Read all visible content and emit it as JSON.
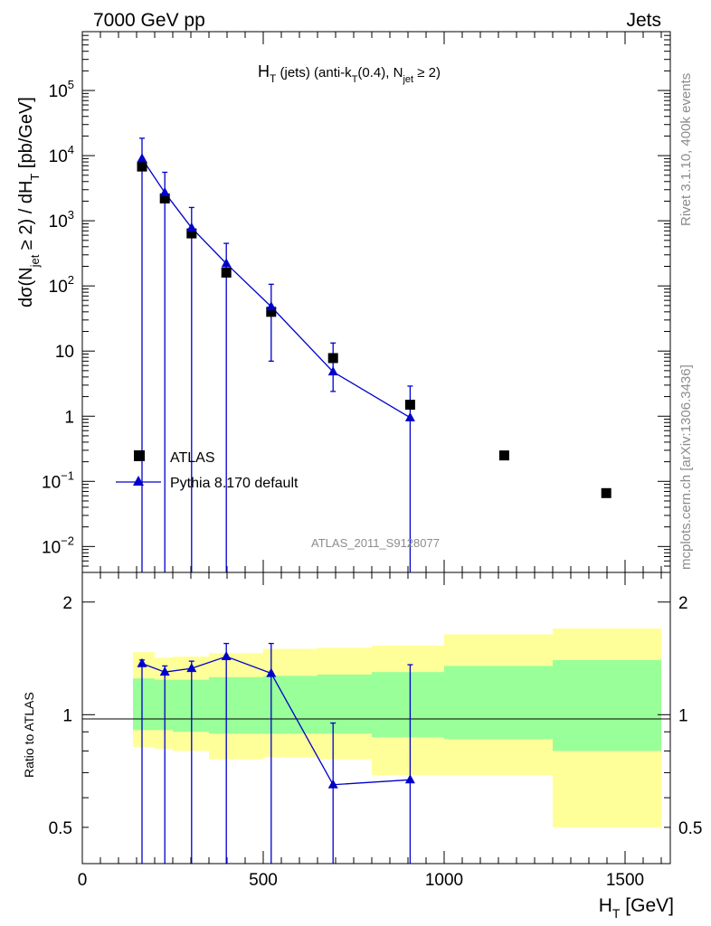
{
  "header": {
    "left": "7000 GeV pp",
    "right": "Jets"
  },
  "side_text": {
    "rivet": "Rivet 3.1.10,  400k events",
    "mcplots": "mcplots.cern.ch [arXiv:1306.3436]"
  },
  "watermark": "ATLAS_2011_S9128077",
  "chart_data": [
    {
      "type": "scatter",
      "title": {
        "main": "H",
        "sub1": "T",
        "mid": " (jets) (anti-k",
        "sub2": "T",
        "mid2": "(0.4), N",
        "sub3": "jet",
        "end": " ≥ 2)"
      },
      "ylabel": {
        "a": "dσ(N",
        "sub1": "jet",
        "b": " ≥ 2) / dH",
        "sub2": "T",
        "c": " [pb/GeV]"
      },
      "yscale": "log",
      "xlim": [
        0,
        1625
      ],
      "ylim": [
        0.004,
        800000
      ],
      "yticks": [
        {
          "value": 0.01,
          "label": "10",
          "exp": "−2"
        },
        {
          "value": 0.1,
          "label": "10",
          "exp": "−1"
        },
        {
          "value": 1,
          "label": "1",
          "exp": ""
        },
        {
          "value": 10,
          "label": "10",
          "exp": ""
        },
        {
          "value": 100,
          "label": "10",
          "exp": "2"
        },
        {
          "value": 1000,
          "label": "10",
          "exp": "3"
        },
        {
          "value": 10000,
          "label": "10",
          "exp": "4"
        },
        {
          "value": 100000,
          "label": "10",
          "exp": "5"
        }
      ],
      "legend": {
        "position": "bottom-left",
        "atlas": "ATLAS",
        "pythia": "Pythia 8.170 default"
      },
      "series": [
        {
          "name": "ATLAS",
          "marker": "square",
          "color": "#000000",
          "x": [
            165,
            228,
            302,
            398,
            522,
            693,
            906,
            1166,
            1448
          ],
          "y": [
            6800,
            2200,
            640,
            160,
            40,
            7.8,
            1.5,
            0.25,
            0.066
          ]
        },
        {
          "name": "Pythia 8.170 default",
          "marker": "triangle",
          "color": "#0000cc",
          "x": [
            165,
            228,
            302,
            398,
            522,
            693,
            906
          ],
          "y": [
            9000,
            2700,
            780,
            220,
            48,
            4.8,
            0.95
          ],
          "yerr_low": [
            9000,
            2700,
            780,
            220,
            41,
            2.4,
            0.95
          ],
          "yerr_high": [
            9500,
            2850,
            820,
            230,
            58,
            8.5,
            1.95
          ]
        }
      ]
    },
    {
      "type": "line",
      "ylabel": "Ratio to ATLAS",
      "xlabel": {
        "main": "H",
        "sub": "T",
        "rest": " [GeV]"
      },
      "xlim": [
        0,
        1625
      ],
      "ylim": [
        0.4,
        2.4
      ],
      "xticks": [
        0,
        500,
        1000,
        1500
      ],
      "yticks": [
        0.5,
        1,
        2
      ],
      "bands": {
        "edges": [
          140,
          200,
          250,
          350,
          500,
          650,
          800,
          1000,
          1300,
          1600
        ],
        "inner_low": [
          0.91,
          0.91,
          0.9,
          0.89,
          0.89,
          0.89,
          0.87,
          0.86,
          0.8
        ],
        "inner_high": [
          1.25,
          1.24,
          1.24,
          1.26,
          1.27,
          1.28,
          1.3,
          1.35,
          1.4
        ],
        "outer_low": [
          0.82,
          0.81,
          0.8,
          0.76,
          0.77,
          0.76,
          0.69,
          0.69,
          0.5
        ],
        "outer_high": [
          1.47,
          1.42,
          1.43,
          1.46,
          1.5,
          1.51,
          1.53,
          1.64,
          1.7
        ],
        "inner_color": "#99ff99",
        "outer_color": "#ffff99"
      },
      "series": [
        {
          "name": "Pythia 8.170 default",
          "color": "#0000cc",
          "x": [
            165,
            228,
            302,
            398,
            522,
            693,
            906
          ],
          "y": [
            1.37,
            1.3,
            1.33,
            1.43,
            1.29,
            0.65,
            0.67
          ],
          "yerr_low": [
            1.37,
            1.25,
            1.27,
            1.34,
            1.02,
            0.3,
            0.3
          ],
          "yerr_high": [
            1.4,
            1.35,
            1.39,
            1.55,
            1.55,
            0.95,
            1.36
          ]
        }
      ]
    }
  ]
}
